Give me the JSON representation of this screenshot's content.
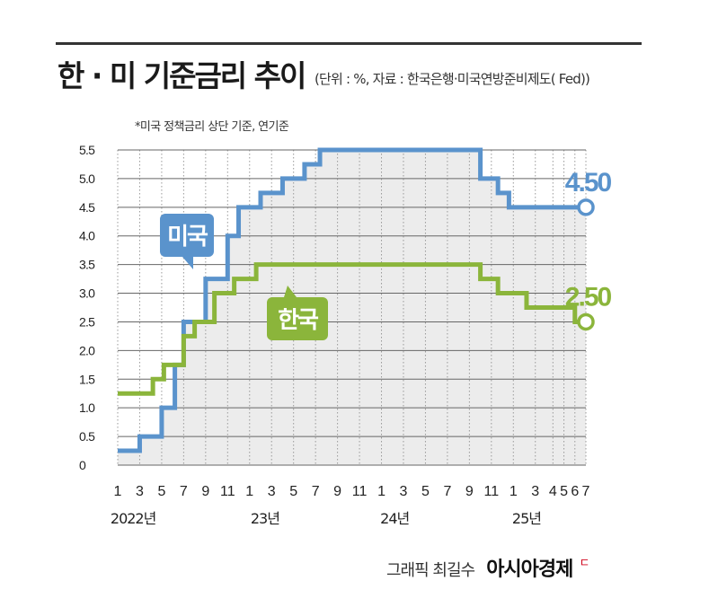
{
  "header": {
    "title": "한 · 미 기준금리 추이",
    "source": "(단위 : %, 자료 : 한국은행·미국연방준비제도(   Fed))",
    "note": "*미국 정책금리 상단 기준, 연기준"
  },
  "credit": {
    "label": "그래픽 최길수",
    "brand": "아시아경제",
    "brand_mark": "ㄷ"
  },
  "chart_data": {
    "type": "line",
    "step": true,
    "x_unit": "month index (0 = Jan 2022)",
    "x_range": [
      0,
      22
    ],
    "ylim": [
      0,
      5.5
    ],
    "y_ticks": [
      "0",
      "0.5",
      "1.0",
      "1.5",
      "2.0",
      "2.5",
      "3.0",
      "3.5",
      "4.0",
      "4.5",
      "5.0",
      "5.5"
    ],
    "x_ticks": [
      {
        "x": 0,
        "label": "1"
      },
      {
        "x": 1,
        "label": "3"
      },
      {
        "x": 2,
        "label": "5"
      },
      {
        "x": 3,
        "label": "7"
      },
      {
        "x": 4,
        "label": "9"
      },
      {
        "x": 5,
        "label": "11"
      },
      {
        "x": 6,
        "label": "1"
      },
      {
        "x": 7,
        "label": "3"
      },
      {
        "x": 8,
        "label": "5"
      },
      {
        "x": 9,
        "label": "7"
      },
      {
        "x": 10,
        "label": "9"
      },
      {
        "x": 11,
        "label": "11"
      },
      {
        "x": 12,
        "label": "1"
      },
      {
        "x": 13,
        "label": "3"
      },
      {
        "x": 14,
        "label": "5"
      },
      {
        "x": 15,
        "label": "7"
      },
      {
        "x": 16,
        "label": "9"
      },
      {
        "x": 17,
        "label": "11"
      },
      {
        "x": 18,
        "label": "1"
      },
      {
        "x": 19,
        "label": "3"
      },
      {
        "x": 19.8,
        "label": "4"
      },
      {
        "x": 20.3,
        "label": "5"
      },
      {
        "x": 20.8,
        "label": "6"
      },
      {
        "x": 21.3,
        "label": "7"
      }
    ],
    "year_labels": [
      {
        "x": 0.7,
        "label": "2022년"
      },
      {
        "x": 6.7,
        "label": "23년"
      },
      {
        "x": 12.6,
        "label": "24년"
      },
      {
        "x": 18.6,
        "label": "25년"
      }
    ],
    "series": [
      {
        "name": "미국",
        "color": "#5a93cc",
        "end_label": "4.50",
        "steps": [
          {
            "x": 0,
            "y": 0.25
          },
          {
            "x": 1,
            "y": 0.5
          },
          {
            "x": 2,
            "y": 1.0
          },
          {
            "x": 2.6,
            "y": 1.75
          },
          {
            "x": 3,
            "y": 2.5
          },
          {
            "x": 4,
            "y": 3.25
          },
          {
            "x": 5,
            "y": 4.0
          },
          {
            "x": 5.5,
            "y": 4.5
          },
          {
            "x": 6.5,
            "y": 4.75
          },
          {
            "x": 7.5,
            "y": 5.0
          },
          {
            "x": 8.5,
            "y": 5.25
          },
          {
            "x": 9.2,
            "y": 5.5
          },
          {
            "x": 16.5,
            "y": 5.0
          },
          {
            "x": 17.3,
            "y": 4.75
          },
          {
            "x": 17.8,
            "y": 4.5
          },
          {
            "x": 21.3,
            "y": 4.5
          }
        ]
      },
      {
        "name": "한국",
        "color": "#8bb53b",
        "end_label": "2.50",
        "steps": [
          {
            "x": 0,
            "y": 1.25
          },
          {
            "x": 1.6,
            "y": 1.5
          },
          {
            "x": 2.1,
            "y": 1.75
          },
          {
            "x": 3,
            "y": 2.25
          },
          {
            "x": 3.5,
            "y": 2.5
          },
          {
            "x": 4.4,
            "y": 3.0
          },
          {
            "x": 5.3,
            "y": 3.25
          },
          {
            "x": 6.3,
            "y": 3.5
          },
          {
            "x": 16.5,
            "y": 3.25
          },
          {
            "x": 17.3,
            "y": 3.0
          },
          {
            "x": 18.6,
            "y": 2.75
          },
          {
            "x": 20.8,
            "y": 2.5
          },
          {
            "x": 21.3,
            "y": 2.5
          }
        ]
      }
    ],
    "callouts": [
      {
        "series": 0,
        "text": "미국"
      },
      {
        "series": 1,
        "text": "한국"
      }
    ]
  }
}
